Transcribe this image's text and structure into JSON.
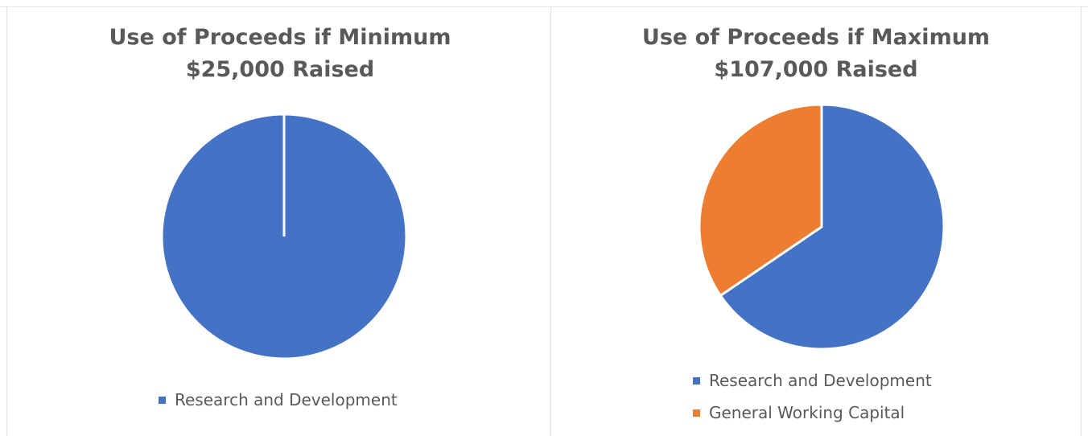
{
  "chart_data": [
    {
      "type": "pie",
      "title": "Use of Proceeds if Minimum $25,000 Raised",
      "title_lines": [
        "Use of Proceeds if Minimum",
        "$25,000 Raised"
      ],
      "categories": [
        "Research and Development"
      ],
      "values": [
        100
      ],
      "colors": [
        "#4472c4"
      ],
      "legend_position": "bottom"
    },
    {
      "type": "pie",
      "title": "Use of Proceeds if Maximum $107,000 Raised",
      "title_lines": [
        "Use of Proceeds if Maximum",
        "$107,000 Raised"
      ],
      "categories": [
        "Research and Development",
        "General Working Capital"
      ],
      "values": [
        65.5,
        34.5
      ],
      "colors": [
        "#4472c4",
        "#ed7d31"
      ],
      "legend_position": "bottom"
    }
  ]
}
